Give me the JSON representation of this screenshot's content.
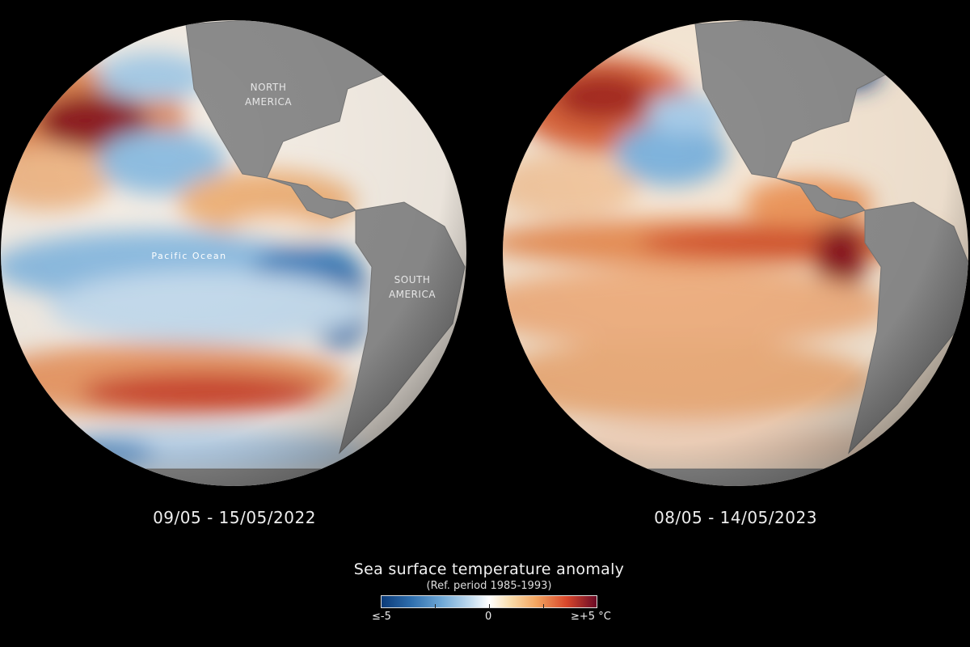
{
  "globes": [
    {
      "date": "09/05 - 15/05/2022",
      "labels": {
        "north_america": [
          "NORTH",
          "AMERICA"
        ],
        "south_america": [
          "SOUTH",
          "AMERICA"
        ],
        "ocean": "Pacific Ocean"
      }
    },
    {
      "date": "08/05 - 14/05/2023"
    }
  ],
  "legend": {
    "title": "Sea surface temperature anomaly",
    "subtitle": "(Ref. period 1985-1993)",
    "min_label": "≤-5",
    "zero_label": "0",
    "max_label": "≥+5 °C",
    "colors": [
      "#0b3a78",
      "#6fa8d6",
      "#ffffff",
      "#f3a560",
      "#d9472b",
      "#6a0a26"
    ]
  }
}
